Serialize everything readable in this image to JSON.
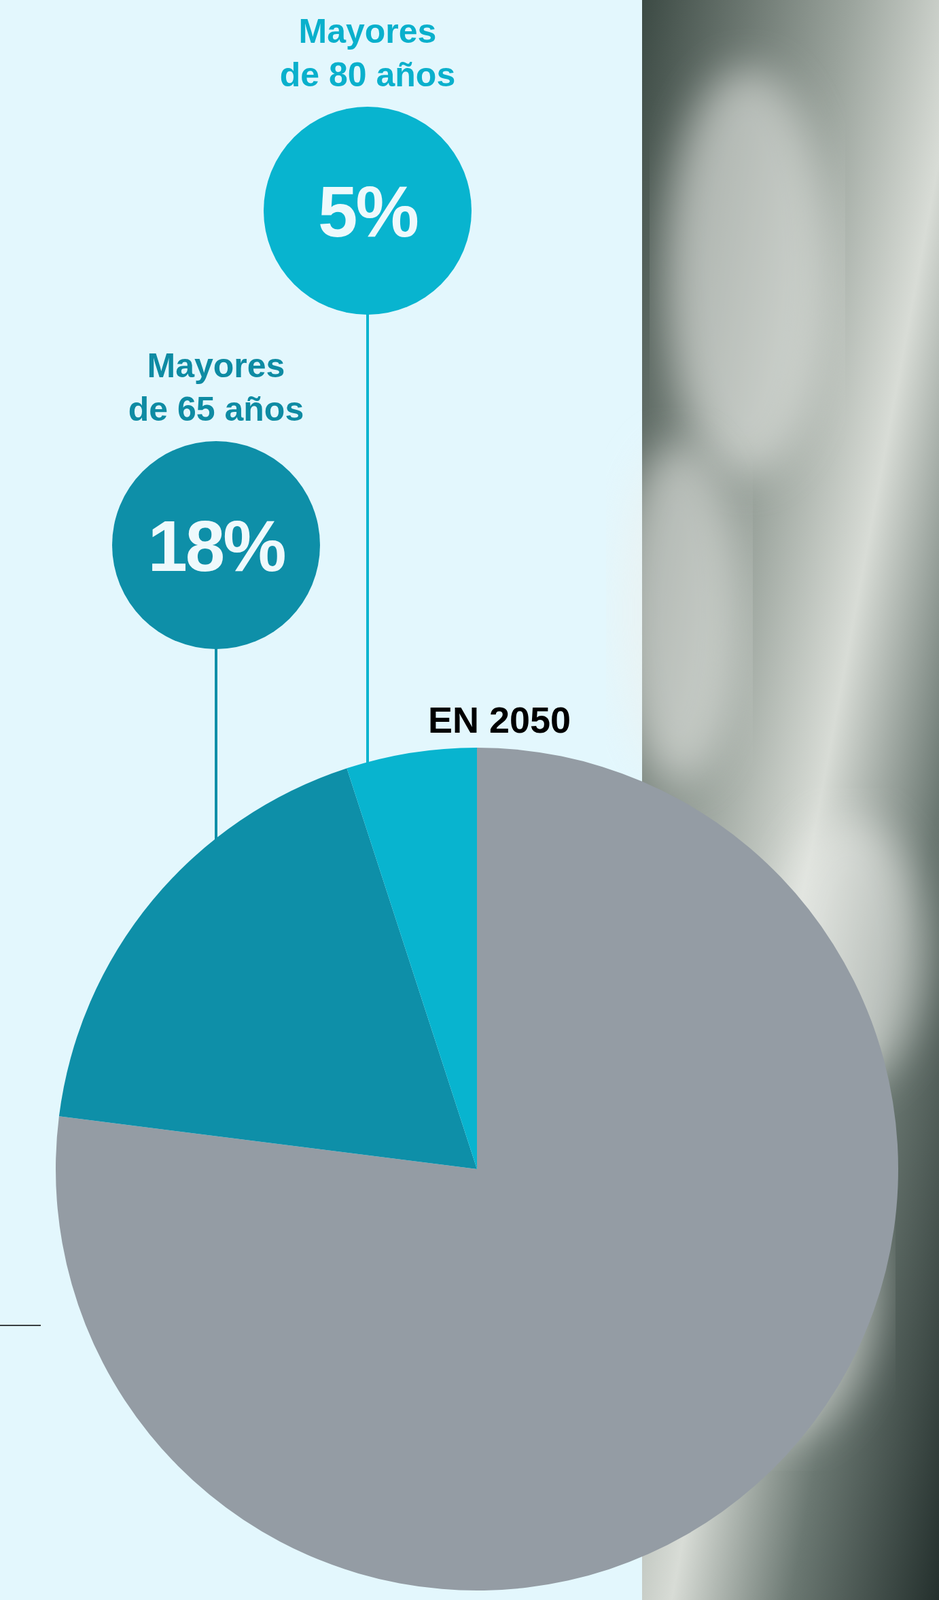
{
  "chart_data": {
    "type": "pie",
    "title": "EN 2050",
    "categories": [
      null,
      "Mayores de 65 años",
      "Mayores de 80 años"
    ],
    "values": [
      77,
      18,
      5
    ],
    "value_labels": [
      null,
      "18%",
      "5%"
    ],
    "colors": [
      "#949ca4",
      "#0e8fa8",
      "#08b4cf"
    ],
    "data_labels": true
  }
}
